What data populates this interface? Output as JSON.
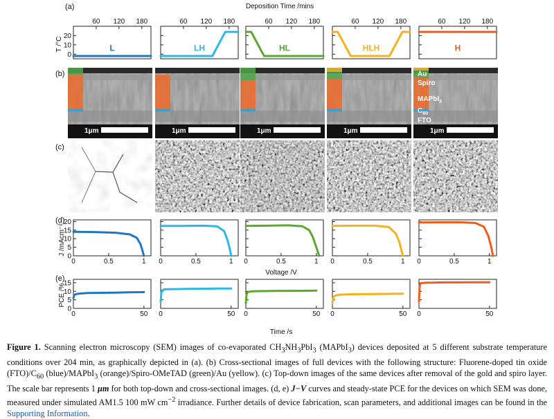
{
  "panel_letters": [
    "(a)",
    "(b)",
    "(c)",
    "(d)",
    "(e)"
  ],
  "conditions": [
    "L",
    "LH",
    "HL",
    "HLH",
    "H"
  ],
  "colors": {
    "L": "#1f77c4",
    "LH": "#29b9e6",
    "HL": "#5aa82a",
    "HLH": "#f4b21c",
    "H": "#ec5d1e",
    "fto_layer": "#29a0d8",
    "mapbi_layer": "#ec6a2a",
    "spiro_layer": "#4ea84a",
    "au_layer": "#f3c13a"
  },
  "layer_labels": {
    "au": "Au",
    "spiro": "Spiro",
    "mapbi": "MAPbI",
    "mapbi_sub": "3",
    "c60": "C",
    "c60_sub": "60",
    "fto": "FTO"
  },
  "scale_bar_label": "1μm",
  "chart_data": [
    {
      "type": "line",
      "panel": "(a)",
      "title": "Deposition Time /mins",
      "ylabel": "T /°C",
      "xlim": [
        0,
        204
      ],
      "ylim": [
        -5,
        30
      ],
      "xticks": [
        60,
        120,
        180
      ],
      "yticks": [
        0,
        10,
        20
      ],
      "series": [
        {
          "name": "L",
          "x": [
            0,
            204
          ],
          "y": [
            -2,
            -2
          ]
        },
        {
          "name": "LH",
          "x": [
            0,
            136,
            170,
            204
          ],
          "y": [
            -2,
            -2,
            24,
            24
          ]
        },
        {
          "name": "HL",
          "x": [
            0,
            14,
            48,
            204
          ],
          "y": [
            24,
            24,
            -2,
            -2
          ]
        },
        {
          "name": "HLH",
          "x": [
            0,
            14,
            48,
            150,
            184,
            204
          ],
          "y": [
            24,
            24,
            -2,
            -2,
            24,
            24
          ]
        },
        {
          "name": "H",
          "x": [
            0,
            204
          ],
          "y": [
            24,
            24
          ]
        }
      ]
    },
    {
      "type": "line",
      "panel": "(d)",
      "xlabel": "Voltage /V",
      "ylabel": "J /mAcm⁻²",
      "xlim": [
        0,
        1.1
      ],
      "ylim": [
        0,
        21
      ],
      "xticks": [
        0,
        0.5,
        1
      ],
      "xtick_labels": [
        "0",
        "0.5",
        "1"
      ],
      "yticks": [
        0,
        5,
        10,
        15,
        20
      ],
      "series": [
        {
          "name": "L",
          "x": [
            0,
            0.3,
            0.6,
            0.8,
            0.9,
            0.95,
            0.98,
            1.0
          ],
          "y": [
            14,
            13.9,
            13.5,
            12.5,
            10.5,
            7,
            3,
            0
          ]
        },
        {
          "name": "LH",
          "x": [
            0,
            0.3,
            0.6,
            0.8,
            0.9,
            0.95,
            0.98,
            1.0
          ],
          "y": [
            17.5,
            17.5,
            17.6,
            17.2,
            14.5,
            9,
            4,
            0
          ]
        },
        {
          "name": "HL",
          "x": [
            0,
            0.3,
            0.6,
            0.8,
            0.9,
            0.95,
            1.0,
            1.04
          ],
          "y": [
            17.5,
            17.6,
            17.8,
            17.3,
            15,
            11,
            5,
            0
          ]
        },
        {
          "name": "HLH",
          "x": [
            0,
            0.3,
            0.6,
            0.8,
            0.9,
            0.95,
            0.98,
            1.0
          ],
          "y": [
            17.5,
            17.6,
            17.6,
            16.8,
            13,
            8,
            3,
            0
          ]
        },
        {
          "name": "H",
          "x": [
            0,
            0.3,
            0.6,
            0.8,
            0.92,
            0.98,
            1.02,
            1.05
          ],
          "y": [
            19.5,
            19.6,
            19.6,
            19.2,
            17,
            12,
            6,
            0
          ]
        }
      ]
    },
    {
      "type": "line",
      "panel": "(e)",
      "xlabel": "Time /s",
      "ylabel": "PCE /%",
      "xlim": [
        0,
        55
      ],
      "ylim": [
        0,
        17
      ],
      "xticks": [
        0,
        50
      ],
      "yticks": [
        0,
        5,
        10,
        15
      ],
      "series": [
        {
          "name": "L",
          "x": [
            0,
            0.5,
            1,
            2,
            5,
            10,
            20,
            30,
            40,
            50
          ],
          "y": [
            6,
            7.5,
            8,
            8.4,
            8.7,
            9,
            9.1,
            9.2,
            9.4,
            9.5
          ]
        },
        {
          "name": "LH",
          "x": [
            0,
            0.5,
            1,
            2,
            5,
            10,
            20,
            30,
            40,
            50
          ],
          "y": [
            4,
            9,
            10.5,
            11,
            11.2,
            11.3,
            11.4,
            11.5,
            11.6,
            11.6
          ]
        },
        {
          "name": "HL",
          "x": [
            0,
            0.5,
            1,
            2,
            5,
            10,
            20,
            30,
            40,
            50
          ],
          "y": [
            3,
            8,
            9.2,
            9.7,
            10,
            10.1,
            10.2,
            10.3,
            10.3,
            10.4
          ]
        },
        {
          "name": "HLH",
          "x": [
            0,
            0.5,
            1,
            2,
            5,
            10,
            20,
            30,
            40,
            50
          ],
          "y": [
            3,
            5.5,
            6.8,
            7.5,
            8,
            8.2,
            8.3,
            8.4,
            8.5,
            8.6
          ]
        },
        {
          "name": "H",
          "x": [
            0,
            0.5,
            1,
            2,
            5,
            10,
            20,
            30,
            40,
            50
          ],
          "y": [
            4,
            13,
            14.5,
            14.8,
            15,
            15.1,
            15.2,
            15.2,
            15.3,
            15.3
          ]
        }
      ]
    }
  ],
  "caption": {
    "label": "Figure 1.",
    "text_1": " Scanning electron microscopy (SEM) images of co-evaporated CH",
    "sub_1": "3",
    "text_2": "NH",
    "sub_2": "3",
    "text_3": "PbI",
    "sub_3": "3",
    "text_4": " (MAPbI",
    "sub_4": "3",
    "text_5": ") devices deposited at 5 different substrate temperature conditions over 204 min, as graphically depicted in (a). (b) Cross-sectional images of full devices with the following structure: Fluorene-doped tin oxide (FTO)/C",
    "sub_5": "60",
    "text_6": " (blue)/MAPbI",
    "sub_6": "3",
    "text_7": " (orange)/Spiro-OMeTAD (green)/Au (yellow). (c) Top-down images of the same devices after removal of the gold and spiro layer. The scale bar represents 1 ",
    "text_mu": "μm",
    "text_8": " for both top-down and cross-sectional images. (d, e) ",
    "text_jv": "J−V",
    "text_9": " curves and steady-state PCE for the devices on which SEM was done, measured under simulated AM1.5 100 mW cm",
    "sup_1": "−2",
    "text_10": " irradiance. Further details of device fabrication, scan parameters, and additional images can be found in the ",
    "link": "Supporting Information",
    "text_end": "."
  }
}
